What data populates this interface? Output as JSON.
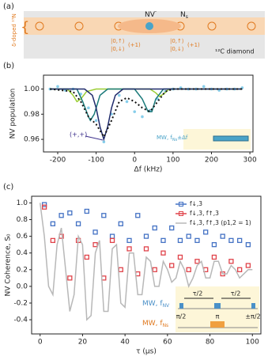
{
  "panel_a": {
    "tag": "(a)",
    "nv": "NV",
    "nv_charge": "-",
    "ns": "N",
    "ns_sub": "s",
    "doped": "δ-doped",
    "doped_n": "¹⁵N",
    "ket_up": "|0,↑⟩",
    "ket_down": "|0,↓⟩",
    "plus": "(+1)",
    "ket_up2": "|0,↑⟩",
    "ket_down2": "|0,↓⟩",
    "plus2": "(+1)",
    "diamond": "¹²C diamond"
  },
  "chart_data": [
    {
      "type": "scatter",
      "tag": "(b)",
      "x_label": "Δf (kHz)",
      "y_label": "NV population",
      "annotation": "(+,+)",
      "inset_label": "MW, f",
      "inset_sub": "Ns",
      "inset_tail": "±Δf",
      "xlim": [
        -237,
        308
      ],
      "ylim": [
        0.95,
        1.011
      ],
      "xticks": [
        -200,
        -100,
        0,
        100,
        200,
        300
      ],
      "yticks": [
        {
          "value": 0.96,
          "label": "0.96"
        },
        {
          "value": 0.98,
          "label": "0.98"
        },
        {
          "value": 1.0,
          "label": "1.00"
        }
      ],
      "series": [
        {
          "kind": "scatter",
          "color": "#87ceeb",
          "x": [
            -220,
            -200,
            -180,
            -160,
            -140,
            -120,
            -100,
            -80,
            -60,
            -40,
            -20,
            0,
            20,
            40,
            60,
            80,
            100,
            120,
            140,
            160,
            180,
            200,
            220,
            240,
            260,
            280
          ],
          "values": [
            1.0,
            1.002,
            0.999,
            1.0,
            0.996,
            0.985,
            0.975,
            0.958,
            0.98,
            0.995,
            0.99,
            0.982,
            0.978,
            0.983,
            0.992,
            0.998,
            1.0,
            1.001,
            1.0,
            1.0,
            1.002,
            1.0,
            0.999,
            1.0,
            1.0,
            1.001
          ]
        },
        {
          "kind": "line",
          "color": "#9acd32",
          "x": [
            -220,
            -175,
            -160,
            -150,
            -140,
            -125,
            -100,
            40,
            55,
            65,
            75,
            90,
            280
          ],
          "values": [
            1,
            1,
            0.995,
            0.99,
            0.992,
            0.998,
            1,
            1,
            0.997,
            0.994,
            0.996,
            1,
            1
          ]
        },
        {
          "kind": "line",
          "color": "#1b7a7a",
          "x": [
            -220,
            -150,
            -135,
            -120,
            -115,
            -105,
            -90,
            -70,
            0,
            20,
            35,
            45,
            55,
            75,
            280
          ],
          "values": [
            1,
            1,
            0.99,
            0.978,
            0.975,
            0.98,
            0.995,
            1,
            1,
            0.992,
            0.982,
            0.982,
            0.992,
            1,
            1
          ]
        },
        {
          "kind": "line",
          "color": "#1f2a6b",
          "x": [
            -220,
            -130,
            -110,
            -100,
            -90,
            -80,
            -70,
            -60,
            -50,
            -30,
            280
          ],
          "values": [
            1,
            1,
            0.995,
            0.985,
            0.97,
            0.96,
            0.97,
            0.985,
            0.995,
            1,
            1
          ]
        },
        {
          "kind": "dotted",
          "color": "#111111",
          "x": [
            -220,
            -160,
            -140,
            -120,
            -100,
            -80,
            -60,
            -40,
            -20,
            0,
            20,
            40,
            60,
            80,
            100,
            280
          ],
          "values": [
            1,
            0.998,
            0.99,
            0.978,
            0.972,
            0.962,
            0.975,
            0.99,
            0.993,
            0.99,
            0.985,
            0.982,
            0.99,
            0.998,
            1,
            1
          ]
        }
      ]
    },
    {
      "type": "scatter",
      "tag": "(c)",
      "x_label": "τ (μs)",
      "y_label": "NV Coherence, S₀",
      "legend": "upper right",
      "xlim": [
        -4,
        104
      ],
      "ylim": [
        -0.57,
        1.08
      ],
      "xticks": [
        0,
        20,
        40,
        60,
        80,
        100
      ],
      "yticks": [
        -0.4,
        -0.2,
        {
          "value": 0,
          "label": "0.0"
        },
        0.2,
        0.4,
        0.6,
        0.8,
        {
          "value": 1,
          "label": "1.0"
        }
      ],
      "inset": {
        "mw1": "MW, f",
        "mw1_sub": "NV",
        "mw2": "MW, f",
        "mw2_sub": "Ns",
        "tau1": "τ/2",
        "tau2": "τ/2",
        "pi2a": "π/2",
        "pi": "π",
        "pi2b": "±π/2"
      },
      "series": [
        {
          "name": "f↓,3",
          "kind": "scatter",
          "color": "#4472c4",
          "x": [
            2,
            6,
            10,
            14,
            18,
            22,
            26,
            30,
            34,
            38,
            42,
            46,
            50,
            54,
            58,
            62,
            66,
            70,
            74,
            78,
            82,
            86,
            90,
            94,
            98
          ],
          "values": [
            0.98,
            0.75,
            0.85,
            0.88,
            0.75,
            0.9,
            0.65,
            0.85,
            0.6,
            0.75,
            0.55,
            0.85,
            0.6,
            0.7,
            0.55,
            0.7,
            0.55,
            0.6,
            0.55,
            0.65,
            0.5,
            0.6,
            0.55,
            0.55,
            0.5
          ]
        },
        {
          "name": "f↓,3, f↑,3",
          "kind": "scatter",
          "color": "#e0434a",
          "x": [
            2,
            6,
            10,
            14,
            18,
            22,
            26,
            30,
            34,
            38,
            42,
            46,
            50,
            54,
            58,
            62,
            66,
            70,
            74,
            78,
            82,
            86,
            90,
            94,
            98
          ],
          "values": [
            0.95,
            0.55,
            0.6,
            0.1,
            0.55,
            0.35,
            0.5,
            0.1,
            0.55,
            0.2,
            0.45,
            0.15,
            0.45,
            0.2,
            0.4,
            0.25,
            0.35,
            0.2,
            0.3,
            0.2,
            0.35,
            0.15,
            0.3,
            0.2,
            0.25
          ]
        },
        {
          "name": "f↓,3, f↑,3 (p1,2 = 1)",
          "kind": "line",
          "color": "#b8b8b8",
          "x": [
            0,
            2,
            4,
            6,
            8,
            10,
            12,
            14,
            16,
            18,
            20,
            22,
            24,
            26,
            28,
            30,
            32,
            34,
            36,
            38,
            40,
            42,
            44,
            46,
            48,
            50,
            52,
            54,
            56,
            58,
            60,
            62,
            64,
            66,
            68,
            70,
            72,
            74,
            76,
            78,
            80,
            82,
            84,
            86,
            88,
            90,
            92,
            94,
            96,
            98,
            100
          ],
          "values": [
            1.0,
            0.6,
            0.0,
            -0.1,
            0.5,
            0.7,
            0.2,
            -0.3,
            -0.1,
            0.6,
            0.5,
            -0.4,
            -0.35,
            0.4,
            0.55,
            -0.3,
            -0.3,
            0.45,
            0.5,
            -0.2,
            -0.25,
            0.4,
            0.4,
            -0.1,
            -0.1,
            0.35,
            0.3,
            0.0,
            0.0,
            0.3,
            0.2,
            0.05,
            0.1,
            0.3,
            0.2,
            0.0,
            0.1,
            0.25,
            0.3,
            0.1,
            0.1,
            0.3,
            0.3,
            0.15,
            0.15,
            0.25,
            0.2,
            0.1,
            0.15,
            0.2,
            0.2
          ]
        }
      ]
    }
  ]
}
